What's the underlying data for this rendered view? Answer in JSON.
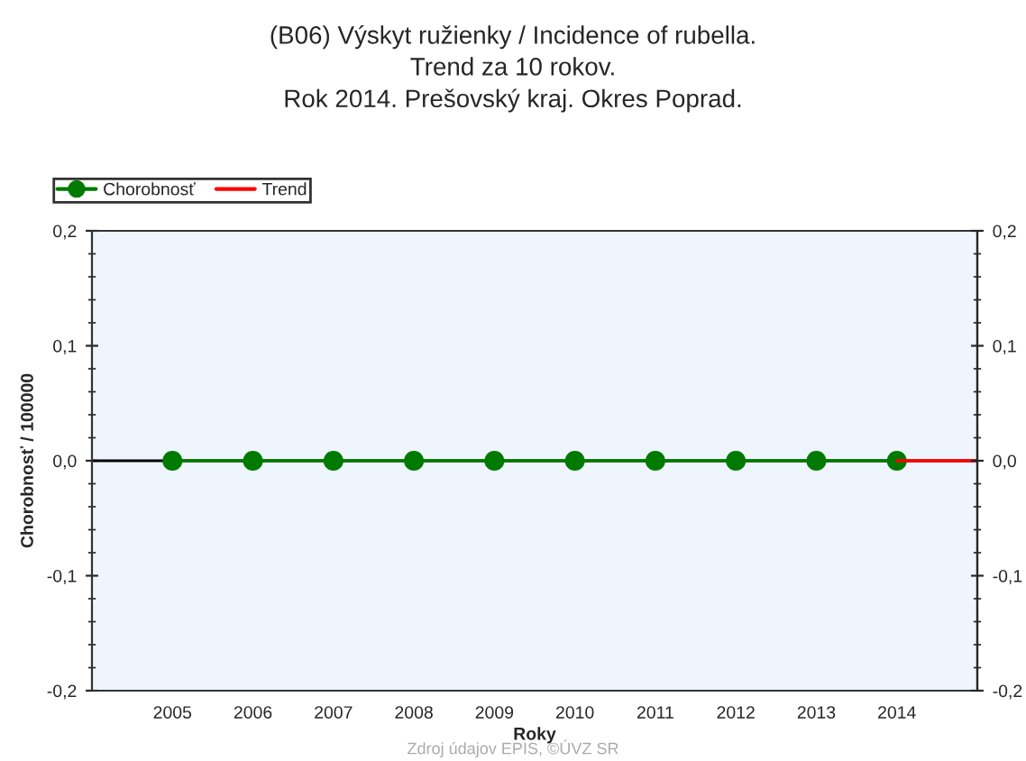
{
  "chart_data": {
    "type": "line",
    "title": "(B06) Výskyt ružienky / Incidence of rubella.\nTrend za 10 rokov.\nRok 2014. Prešovský kraj. Okres Poprad.",
    "xlabel": "Roky",
    "ylabel": "Chorobnosť / 100000",
    "annotations": [
      "Zdroj údajov EPIS, ©ÚVZ SR"
    ],
    "series": [
      {
        "name": "Chorobnosť",
        "color": "#007a00",
        "marker": "circle",
        "x": [
          2005,
          2006,
          2007,
          2008,
          2009,
          2010,
          2011,
          2012,
          2013,
          2014
        ],
        "values": [
          0,
          0,
          0,
          0,
          0,
          0,
          0,
          0,
          0,
          0
        ]
      },
      {
        "name": "Trend",
        "color": "#ff0000",
        "marker": "none",
        "x": [
          2014,
          2015
        ],
        "values": [
          0,
          0
        ]
      }
    ],
    "ref_lines": [
      {
        "axis": "y",
        "value": 0,
        "color": "#000000"
      }
    ],
    "xlim": [
      2004,
      2015
    ],
    "xticks": [
      2005,
      2006,
      2007,
      2008,
      2009,
      2010,
      2011,
      2012,
      2013,
      2014
    ],
    "ylim": [
      -0.2,
      0.2
    ],
    "yticks": [
      {
        "value": -0.2,
        "label": "-0,2"
      },
      {
        "value": -0.1,
        "label": "-0,1"
      },
      {
        "value": 0,
        "label": "0,0"
      },
      {
        "value": 0.1,
        "label": "0,1"
      },
      {
        "value": 0.2,
        "label": "0,2"
      }
    ],
    "y2lim": [
      -0.2,
      0.2
    ],
    "y2ticks": [
      {
        "value": -0.2,
        "label": "-0,2"
      },
      {
        "value": -0.1,
        "label": "-0,1"
      },
      {
        "value": 0,
        "label": "0,0"
      },
      {
        "value": 0.1,
        "label": "0,1"
      },
      {
        "value": 0.2,
        "label": "0,2"
      }
    ],
    "grid": false,
    "legend": "top left",
    "line_style": "solid"
  }
}
